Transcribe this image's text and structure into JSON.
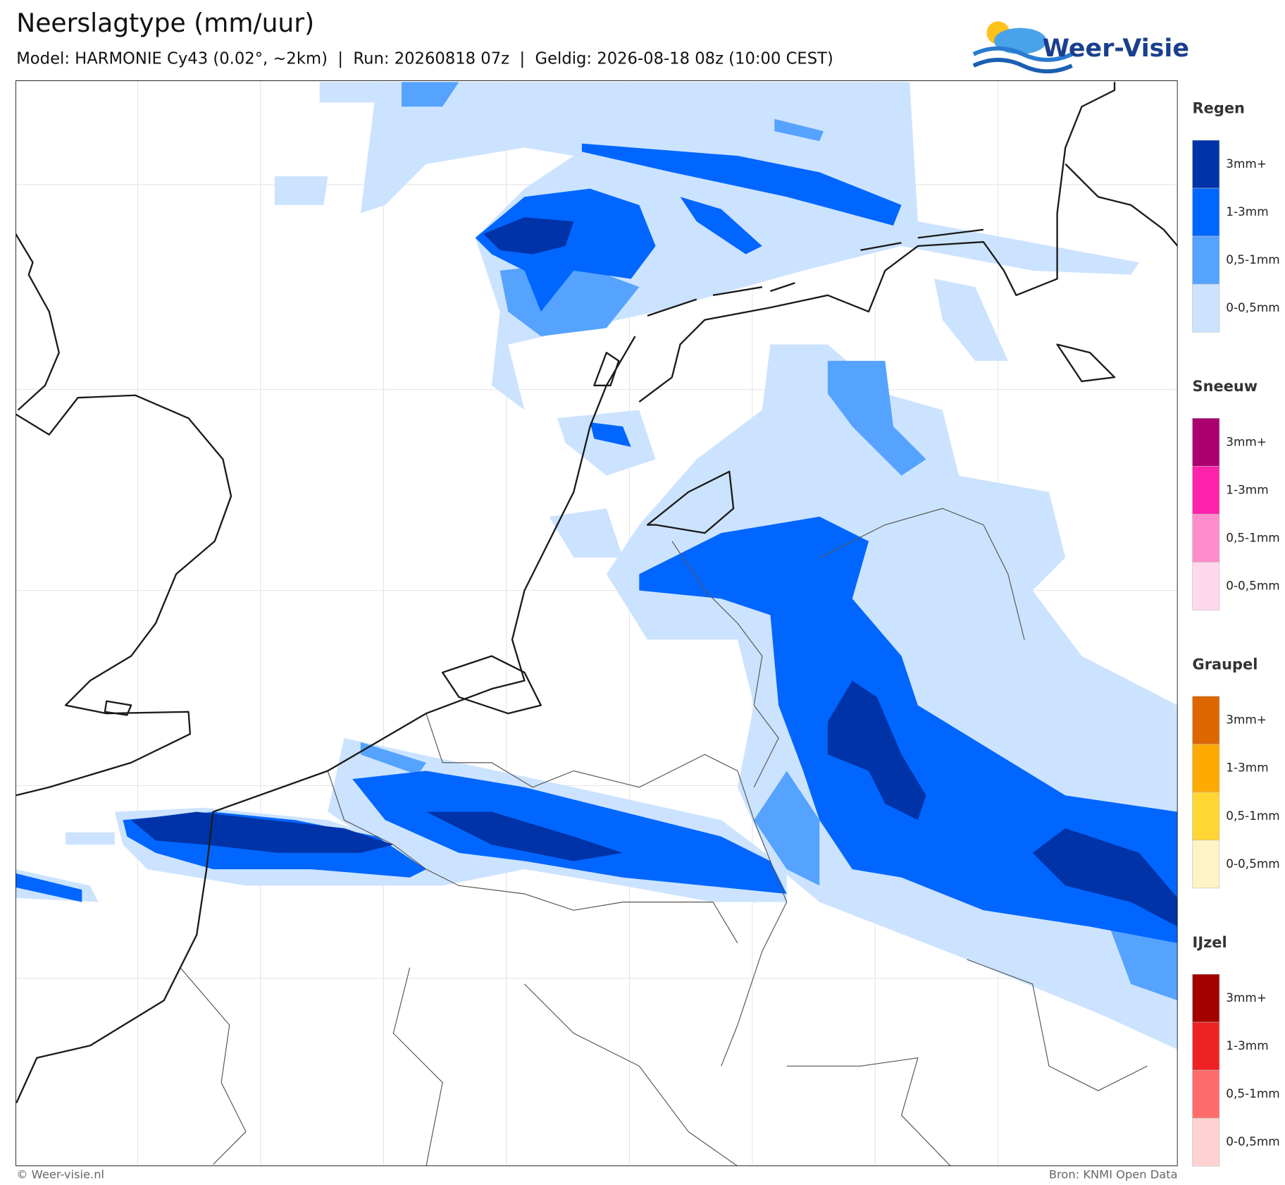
{
  "header": {
    "title": "Neerslagtype (mm/uur)",
    "subtitle": "Model: HARMONIE Cy43 (0.02°, ~2km)  |  Run: 20260818 07z  |  Geldig: 2026-08-18 08z (10:00 CEST)"
  },
  "logo": {
    "text": "Weer-Visie"
  },
  "legend": [
    {
      "title": "Regen",
      "items": [
        {
          "label": "3mm+",
          "color": "#0033a8"
        },
        {
          "label": "1-3mm",
          "color": "#0066ff"
        },
        {
          "label": "0,5-1mm",
          "color": "#55a3ff"
        },
        {
          "label": "0-0,5mm",
          "color": "#cce3ff"
        }
      ]
    },
    {
      "title": "Sneeuw",
      "items": [
        {
          "label": "3mm+",
          "color": "#aa0070"
        },
        {
          "label": "1-3mm",
          "color": "#ff22aa"
        },
        {
          "label": "0,5-1mm",
          "color": "#ff8ccc"
        },
        {
          "label": "0-0,5mm",
          "color": "#ffd8ee"
        }
      ]
    },
    {
      "title": "Graupel",
      "items": [
        {
          "label": "3mm+",
          "color": "#dd6600"
        },
        {
          "label": "1-3mm",
          "color": "#ffaa00"
        },
        {
          "label": "0,5-1mm",
          "color": "#ffd633"
        },
        {
          "label": "0-0,5mm",
          "color": "#fff3c6"
        }
      ]
    },
    {
      "title": "IJzel",
      "items": [
        {
          "label": "3mm+",
          "color": "#a30000"
        },
        {
          "label": "1-3mm",
          "color": "#ee2222"
        },
        {
          "label": "0,5-1mm",
          "color": "#ff6b6b"
        },
        {
          "label": "0-0,5mm",
          "color": "#ffd2d2"
        }
      ]
    }
  ],
  "footer": {
    "left": "© Weer-visie.nl",
    "right": "Bron: KNMI Open Data"
  }
}
